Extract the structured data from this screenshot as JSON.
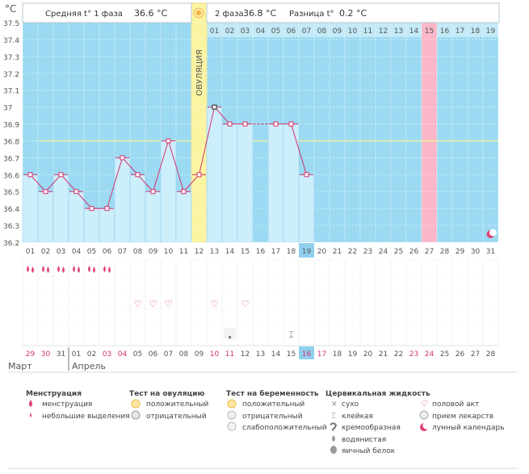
{
  "unit_label": "°C",
  "header": {
    "phase1_label": "Средняя t° 1 фаза",
    "phase1_value": "36.6 °C",
    "phase2_label": "2 фаза",
    "phase2_value": "36.8 °C",
    "diff_label": "Разница t°",
    "diff_value": "0.2 °C"
  },
  "ovulation_label": "ОВУЛЯЦИЯ",
  "colors": {
    "sky": "#9bdaf2",
    "sky_dark": "#7fcbea",
    "bar_fill": "#cdeefb",
    "bar_stroke": "#8fd0ee",
    "line": "#d4326c",
    "ovulation": "#fbf4a3",
    "pink": "#fbb7c8",
    "coverline": "#eef3a2",
    "highlight": "#8fd0ee",
    "red_text": "#d4326c"
  },
  "chart_data": {
    "type": "line",
    "title": "BBT chart",
    "ylabel": "°C",
    "ylim": [
      36.2,
      37.5
    ],
    "y_ticks": [
      "37.5",
      "37.4",
      "37.3",
      "37.2",
      "37.1",
      "37",
      "36.9",
      "36.8",
      "36.7",
      "36.6",
      "36.5",
      "36.4",
      "36.3",
      "36.2"
    ],
    "coverline": 36.8,
    "dates_top": [
      "01",
      "02",
      "03",
      "04",
      "05",
      "06",
      "07",
      "08",
      "09",
      "10",
      "11",
      "12",
      "13",
      "14",
      "15",
      "16",
      "17",
      "18",
      "19",
      "20",
      "21",
      "22",
      "23",
      "24",
      "25",
      "26",
      "27",
      "28",
      "29",
      "30",
      "31"
    ],
    "temperatures": [
      36.6,
      36.5,
      36.6,
      36.5,
      36.4,
      36.4,
      36.7,
      36.6,
      36.5,
      36.8,
      36.5,
      36.6,
      37.0,
      36.9,
      36.9,
      null,
      36.9,
      36.9,
      36.6,
      null,
      null,
      null,
      null,
      null,
      null,
      null,
      null,
      null,
      null,
      null,
      null
    ],
    "ovulation_day_index": 11,
    "phase2_header_days": [
      "01",
      "02",
      "03",
      "04",
      "05",
      "06",
      "07",
      "08",
      "09",
      "10",
      "11",
      "12",
      "13",
      "14",
      "15",
      "16",
      "17",
      "18",
      "19"
    ],
    "pink_header_index": 14,
    "today_index": 18,
    "moon_index": 30,
    "dates_bottom": [
      "29",
      "30",
      "31",
      "01",
      "02",
      "03",
      "04",
      "05",
      "06",
      "07",
      "08",
      "09",
      "10",
      "11",
      "12",
      "13",
      "14",
      "15",
      "16",
      "17",
      "18",
      "19",
      "20",
      "21",
      "22",
      "23",
      "24",
      "25",
      "26",
      "27",
      "28"
    ],
    "red_bottom_indices": [
      0,
      1,
      5,
      6,
      12,
      13,
      18,
      19,
      25,
      26
    ],
    "month_labels": [
      "Март",
      "Апрель"
    ]
  },
  "markers": {
    "menstruation_days": [
      0,
      1,
      2,
      3,
      4,
      5
    ],
    "sex_days": [
      7,
      8,
      9,
      12,
      14
    ],
    "cervical": [
      {
        "day": 13,
        "symbol": "❟"
      },
      {
        "day": 17,
        "symbol": "⌶"
      }
    ]
  },
  "legend": {
    "menstruation": {
      "title": "Менструация",
      "items": [
        "менструация",
        "небольшие выделения"
      ]
    },
    "ovulation_test": {
      "title": "Тест на овуляцию",
      "items": [
        "положительный",
        "отрицательный"
      ]
    },
    "pregnancy_test": {
      "title": "Тест на беременность",
      "items": [
        "положительный",
        "отрицательный",
        "слабоположительный"
      ]
    },
    "cervical": {
      "title": "Цервикальная жидкость",
      "items": [
        "сухо",
        "клейкая",
        "кремообразная",
        "водянистая",
        "яичный белок"
      ]
    },
    "other": {
      "items": [
        "половой акт",
        "прием лекарств",
        "лунный календарь"
      ]
    }
  }
}
